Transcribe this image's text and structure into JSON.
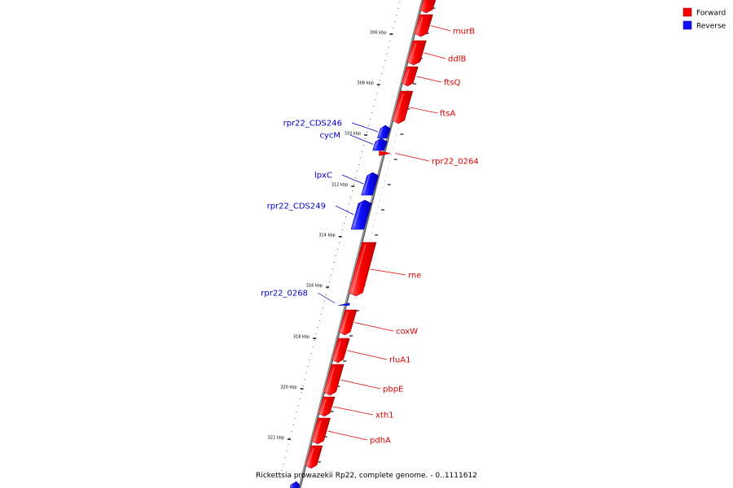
{
  "caption": "Rickettsia prowazekii Rp22, complete genome. - 0..1111612",
  "colors": {
    "forward": "#ff0000",
    "reverse": "#1010ff",
    "backbone": "#888888"
  },
  "legend": [
    {
      "label": "Forward",
      "color": "#ff0000"
    },
    {
      "label": "Reverse",
      "color": "#1010ff"
    }
  ],
  "scale_labels": [
    "306 kbp",
    "308 kbp",
    "310 kbp",
    "312 kbp",
    "314 kbp",
    "316 kbp",
    "318 kbp",
    "320 kbp",
    "322 kbp"
  ],
  "genes": [
    {
      "name": "murB",
      "strand": "forward"
    },
    {
      "name": "ddlB",
      "strand": "forward"
    },
    {
      "name": "ftsQ",
      "strand": "forward"
    },
    {
      "name": "ftsA",
      "strand": "forward"
    },
    {
      "name": "rpr22_0264",
      "strand": "forward"
    },
    {
      "name": "rpr22_CDS246",
      "strand": "reverse"
    },
    {
      "name": "cycM",
      "strand": "reverse"
    },
    {
      "name": "lpxC",
      "strand": "reverse"
    },
    {
      "name": "rpr22_CDS249",
      "strand": "reverse"
    },
    {
      "name": "rne",
      "strand": "forward"
    },
    {
      "name": "rpr22_0268",
      "strand": "reverse"
    },
    {
      "name": "coxW",
      "strand": "forward"
    },
    {
      "name": "rluA1",
      "strand": "forward"
    },
    {
      "name": "pbpE",
      "strand": "forward"
    },
    {
      "name": "xth1",
      "strand": "forward"
    },
    {
      "name": "pdhA",
      "strand": "forward"
    }
  ]
}
